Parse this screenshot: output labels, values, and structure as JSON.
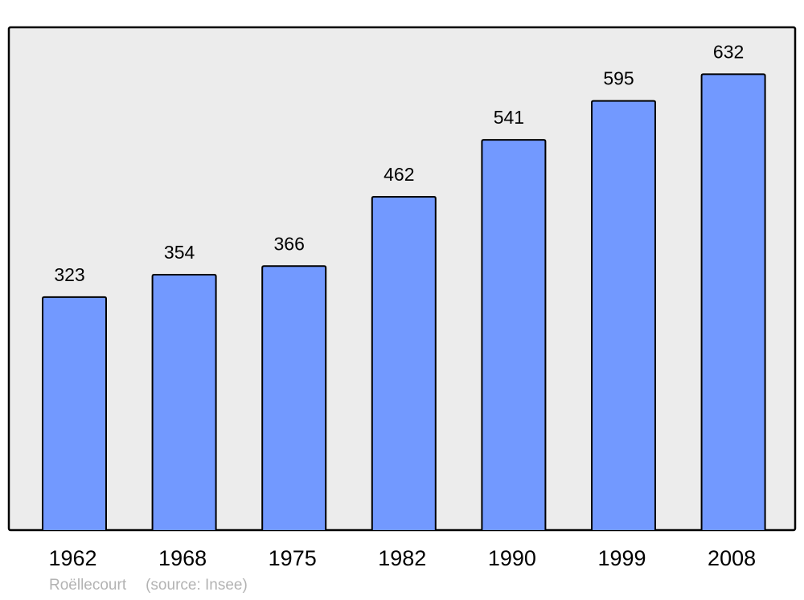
{
  "chart_data": {
    "type": "bar",
    "categories": [
      "1962",
      "1968",
      "1975",
      "1982",
      "1990",
      "1999",
      "2008"
    ],
    "values": [
      323,
      354,
      366,
      462,
      541,
      595,
      632
    ],
    "ylim": [
      0,
      697
    ],
    "grid": false,
    "legend": "none",
    "bar_color": "#7299ff",
    "background_color": "#ececec",
    "data_labels": true
  },
  "footer": {
    "place": "Roëllecourt",
    "source": "(source: Insee)"
  }
}
